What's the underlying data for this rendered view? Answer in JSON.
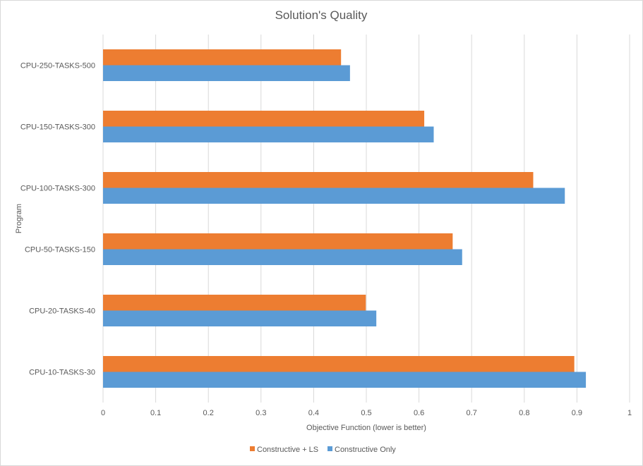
{
  "chart_data": {
    "type": "bar",
    "orientation": "horizontal",
    "title": "Solution's Quality",
    "xlabel": "Objective Function (lower is better)",
    "ylabel": "Program",
    "xlim": [
      0,
      1
    ],
    "x_ticks": [
      "0",
      "0.1",
      "0.2",
      "0.3",
      "0.4",
      "0.5",
      "0.6",
      "0.7",
      "0.8",
      "0.9",
      "1"
    ],
    "grid": "vertical",
    "legend_position": "bottom",
    "categories": [
      "CPU-250-TASKS-500",
      "CPU-150-TASKS-300",
      "CPU-100-TASKS-300",
      "CPU-50-TASKS-150",
      "CPU-20-TASKS-40",
      "CPU-10-TASKS-30"
    ],
    "series": [
      {
        "name": "Constructive + LS",
        "color": "#ed7d31",
        "values": [
          0.452,
          0.61,
          0.817,
          0.664,
          0.499,
          0.895
        ]
      },
      {
        "name": "Constructive Only",
        "color": "#5b9bd5",
        "values": [
          0.469,
          0.628,
          0.877,
          0.682,
          0.519,
          0.917
        ]
      }
    ]
  }
}
